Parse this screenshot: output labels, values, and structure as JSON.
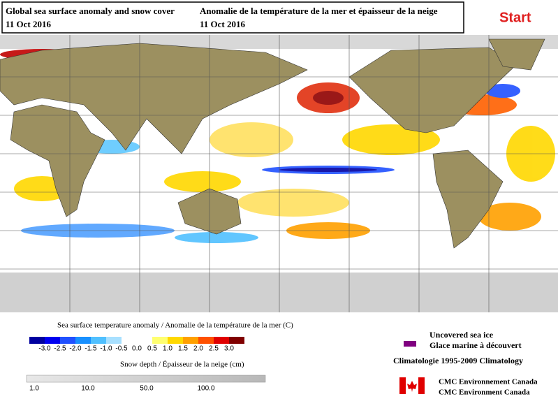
{
  "header": {
    "title_en": "Global sea surface anomaly and snow cover",
    "date_en": "11 Oct 2016",
    "title_fr": "Anomalie de la température de la mer et épaisseur de la neige",
    "date_fr": "11 Oct 2016",
    "start": "Start"
  },
  "sst_legend": {
    "title": "Sea surface temperature anomaly / Anomalie de la température de la mer (C)",
    "ticks": [
      "-3.0",
      "-2.5",
      "-2.0",
      "-1.5",
      "-1.0",
      "-0.5",
      "0.0",
      "0.5",
      "1.0",
      "1.5",
      "2.0",
      "2.5",
      "3.0"
    ],
    "colors": [
      "#0000a0",
      "#0000f0",
      "#2050ff",
      "#1890ff",
      "#50c0ff",
      "#a8e0ff",
      "#ffffff",
      "#ffffff",
      "#ffff70",
      "#ffd800",
      "#ffa000",
      "#ff5000",
      "#e00000",
      "#800000"
    ]
  },
  "snow_legend": {
    "title": "Snow depth / Épaisseur de la neige (cm)",
    "ticks": [
      "1.0",
      "10.0",
      "50.0",
      "100.0"
    ]
  },
  "sea_ice": {
    "label_en": "Uncovered sea ice",
    "label_fr": "Glace marine à découvert",
    "color": "#800080"
  },
  "climatology": "Climatologie 1995-2009 Climatology",
  "credits": [
    "CMC Environnement Canada",
    "CMC Environment Canada"
  ]
}
